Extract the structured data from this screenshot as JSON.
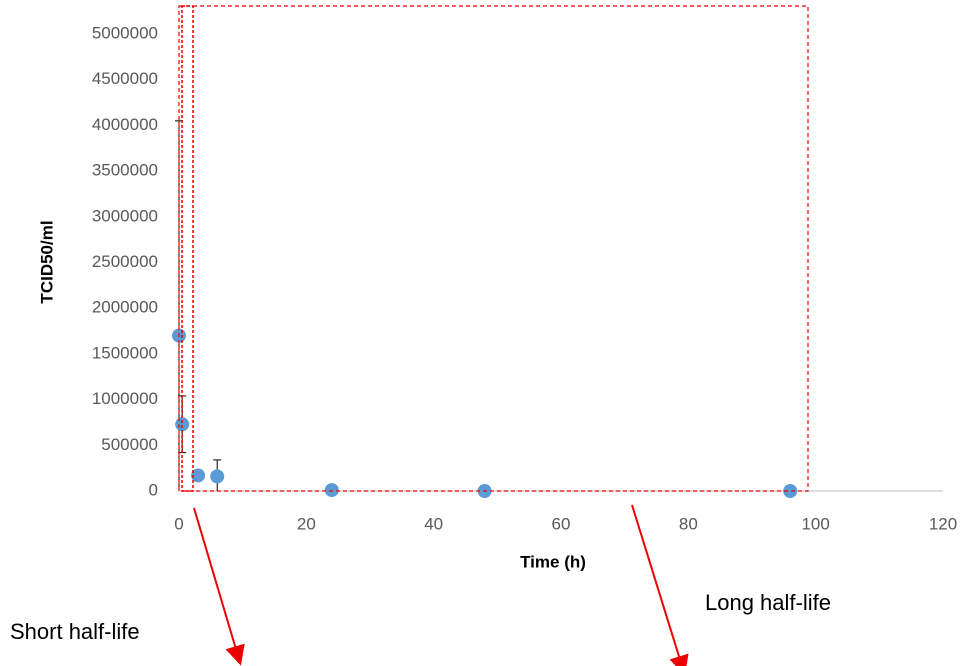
{
  "chart_data": {
    "type": "scatter",
    "x_label": "Time (h)",
    "y_label": "TCID50/ml",
    "annotations": [
      "Short half-life",
      "Long half-life"
    ],
    "series": [
      {
        "name": "TCID50/ml",
        "color": "#5b9bd5",
        "x": [
          0,
          0.5,
          3,
          6,
          24,
          48,
          96
        ],
        "values": [
          1700000,
          730000,
          170000,
          160000,
          10000,
          0,
          0
        ],
        "errors": [
          2350000,
          310000,
          null,
          180000,
          null,
          null,
          null
        ]
      }
    ],
    "xlim": [
      0,
      120
    ],
    "xticks": [
      0,
      20,
      40,
      60,
      80,
      100,
      120
    ],
    "ylim": [
      0,
      5000000
    ],
    "yticks": [
      0,
      500000,
      1000000,
      1500000,
      2000000,
      2500000,
      3000000,
      3500000,
      4000000,
      4500000,
      5000000
    ],
    "grid": false
  }
}
